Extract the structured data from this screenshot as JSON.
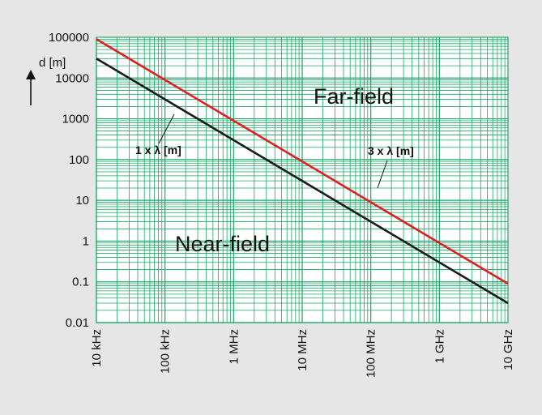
{
  "chart_data": {
    "type": "line",
    "x_scale": "log",
    "y_scale": "log",
    "xlim_hz": [
      10000,
      10000000000
    ],
    "ylim_m": [
      0.01,
      100000
    ],
    "grid": true,
    "x_tick_labels": [
      "10 kHz",
      "100 kHz",
      "1 MHz",
      "10 MHz",
      "100 MHz",
      "1 GHz",
      "10 GHz"
    ],
    "y_tick_labels": [
      "100000",
      "10000",
      "1000",
      "100",
      "10",
      "1",
      "0.1",
      "0.01"
    ],
    "ylabel": "d [m]",
    "series": [
      {
        "name": "3 x λ [m]",
        "color": "#e02020",
        "x": [
          10000,
          10000000000
        ],
        "y": [
          90000,
          0.09
        ]
      },
      {
        "name": "1 x λ [m]",
        "color": "#1a1a1a",
        "x": [
          10000,
          10000000000
        ],
        "y": [
          30000,
          0.03
        ]
      }
    ],
    "annotations": {
      "far_field": "Far-field",
      "near_field": "Near-field"
    },
    "colors": {
      "background": "#e6e6e6",
      "plot_background": "#ffffff",
      "grid": "#1aa866"
    }
  }
}
